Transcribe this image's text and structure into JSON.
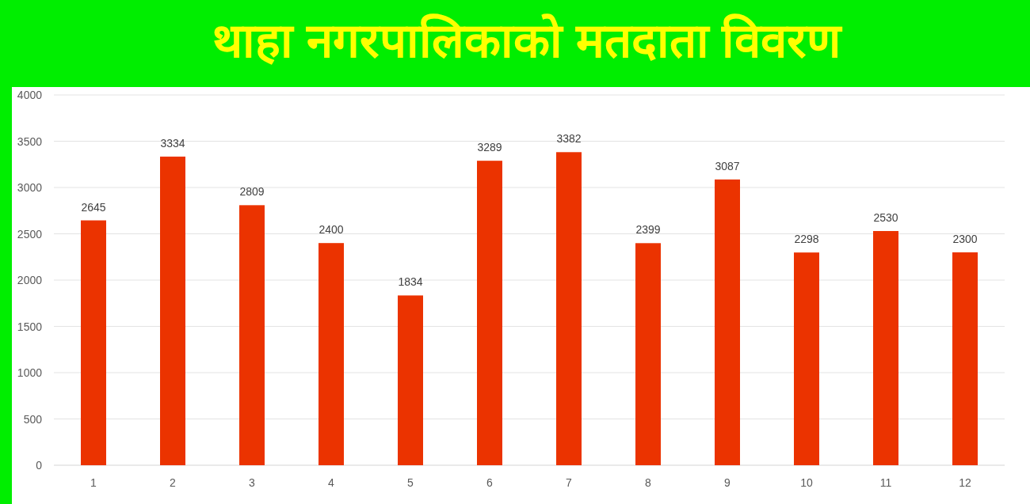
{
  "chart_data": {
    "type": "bar",
    "title": "थाहा नगरपालिकाको मतदाता विवरण",
    "categories": [
      "1",
      "2",
      "3",
      "4",
      "5",
      "6",
      "7",
      "8",
      "9",
      "10",
      "11",
      "12"
    ],
    "values": [
      2645,
      3334,
      2809,
      2400,
      1834,
      3289,
      3382,
      2399,
      3087,
      2298,
      2530,
      2300
    ],
    "color": "#eb3300",
    "ylim": [
      0,
      4000
    ],
    "yticks": [
      0,
      500,
      1000,
      1500,
      2000,
      2500,
      3000,
      3500,
      4000
    ],
    "grid": "y",
    "data_labels": true
  }
}
